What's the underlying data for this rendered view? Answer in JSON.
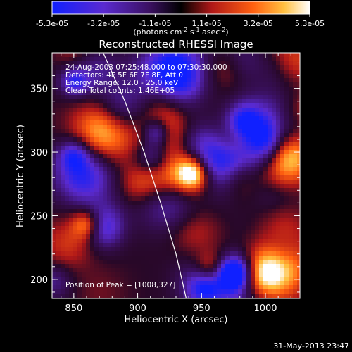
{
  "chart_data": {
    "type": "heatmap",
    "title": "Reconstructed RHESSI Image",
    "xlabel": "Heliocentric X (arcsec)",
    "ylabel": "Heliocentric Y (arcsec)",
    "xlim": [
      833,
      1027
    ],
    "ylim": [
      185,
      378
    ],
    "x_ticks": [
      850,
      900,
      950,
      1000
    ],
    "y_ticks": [
      200,
      250,
      300,
      350
    ],
    "colorbar": {
      "ticks": [
        "-5.3e-05",
        "-3.2e-05",
        "-1.1e-05",
        "1.1e-05",
        "3.2e-05",
        "5.3e-05"
      ],
      "unit_text": "(photons cm",
      "unit_sup1": "-2",
      "unit_mid": " s",
      "unit_sup2": "-1",
      "unit_mid2": " asec",
      "unit_sup3": "-2",
      "unit_end": ")",
      "min": -5.3e-05,
      "max": 5.3e-05
    },
    "header_lines": [
      "24-Aug-2003 07:25:48.000 to 07:30:30.000",
      "Detectors: 4F 5F 6F 7F 8F, Att 0",
      "Energy Range: 12.0 - 25.0 keV",
      "Clean     Total counts: 1.46E+05"
    ],
    "peak_label": "Position of Peak = [1008,327]",
    "peak": [
      1008,
      327
    ],
    "limb_curve": [
      [
        873,
        378
      ],
      [
        890,
        340
      ],
      [
        905,
        300
      ],
      [
        918,
        260
      ],
      [
        930,
        220
      ],
      [
        938,
        185
      ]
    ]
  },
  "footer_date": "31-May-2013 23:47"
}
